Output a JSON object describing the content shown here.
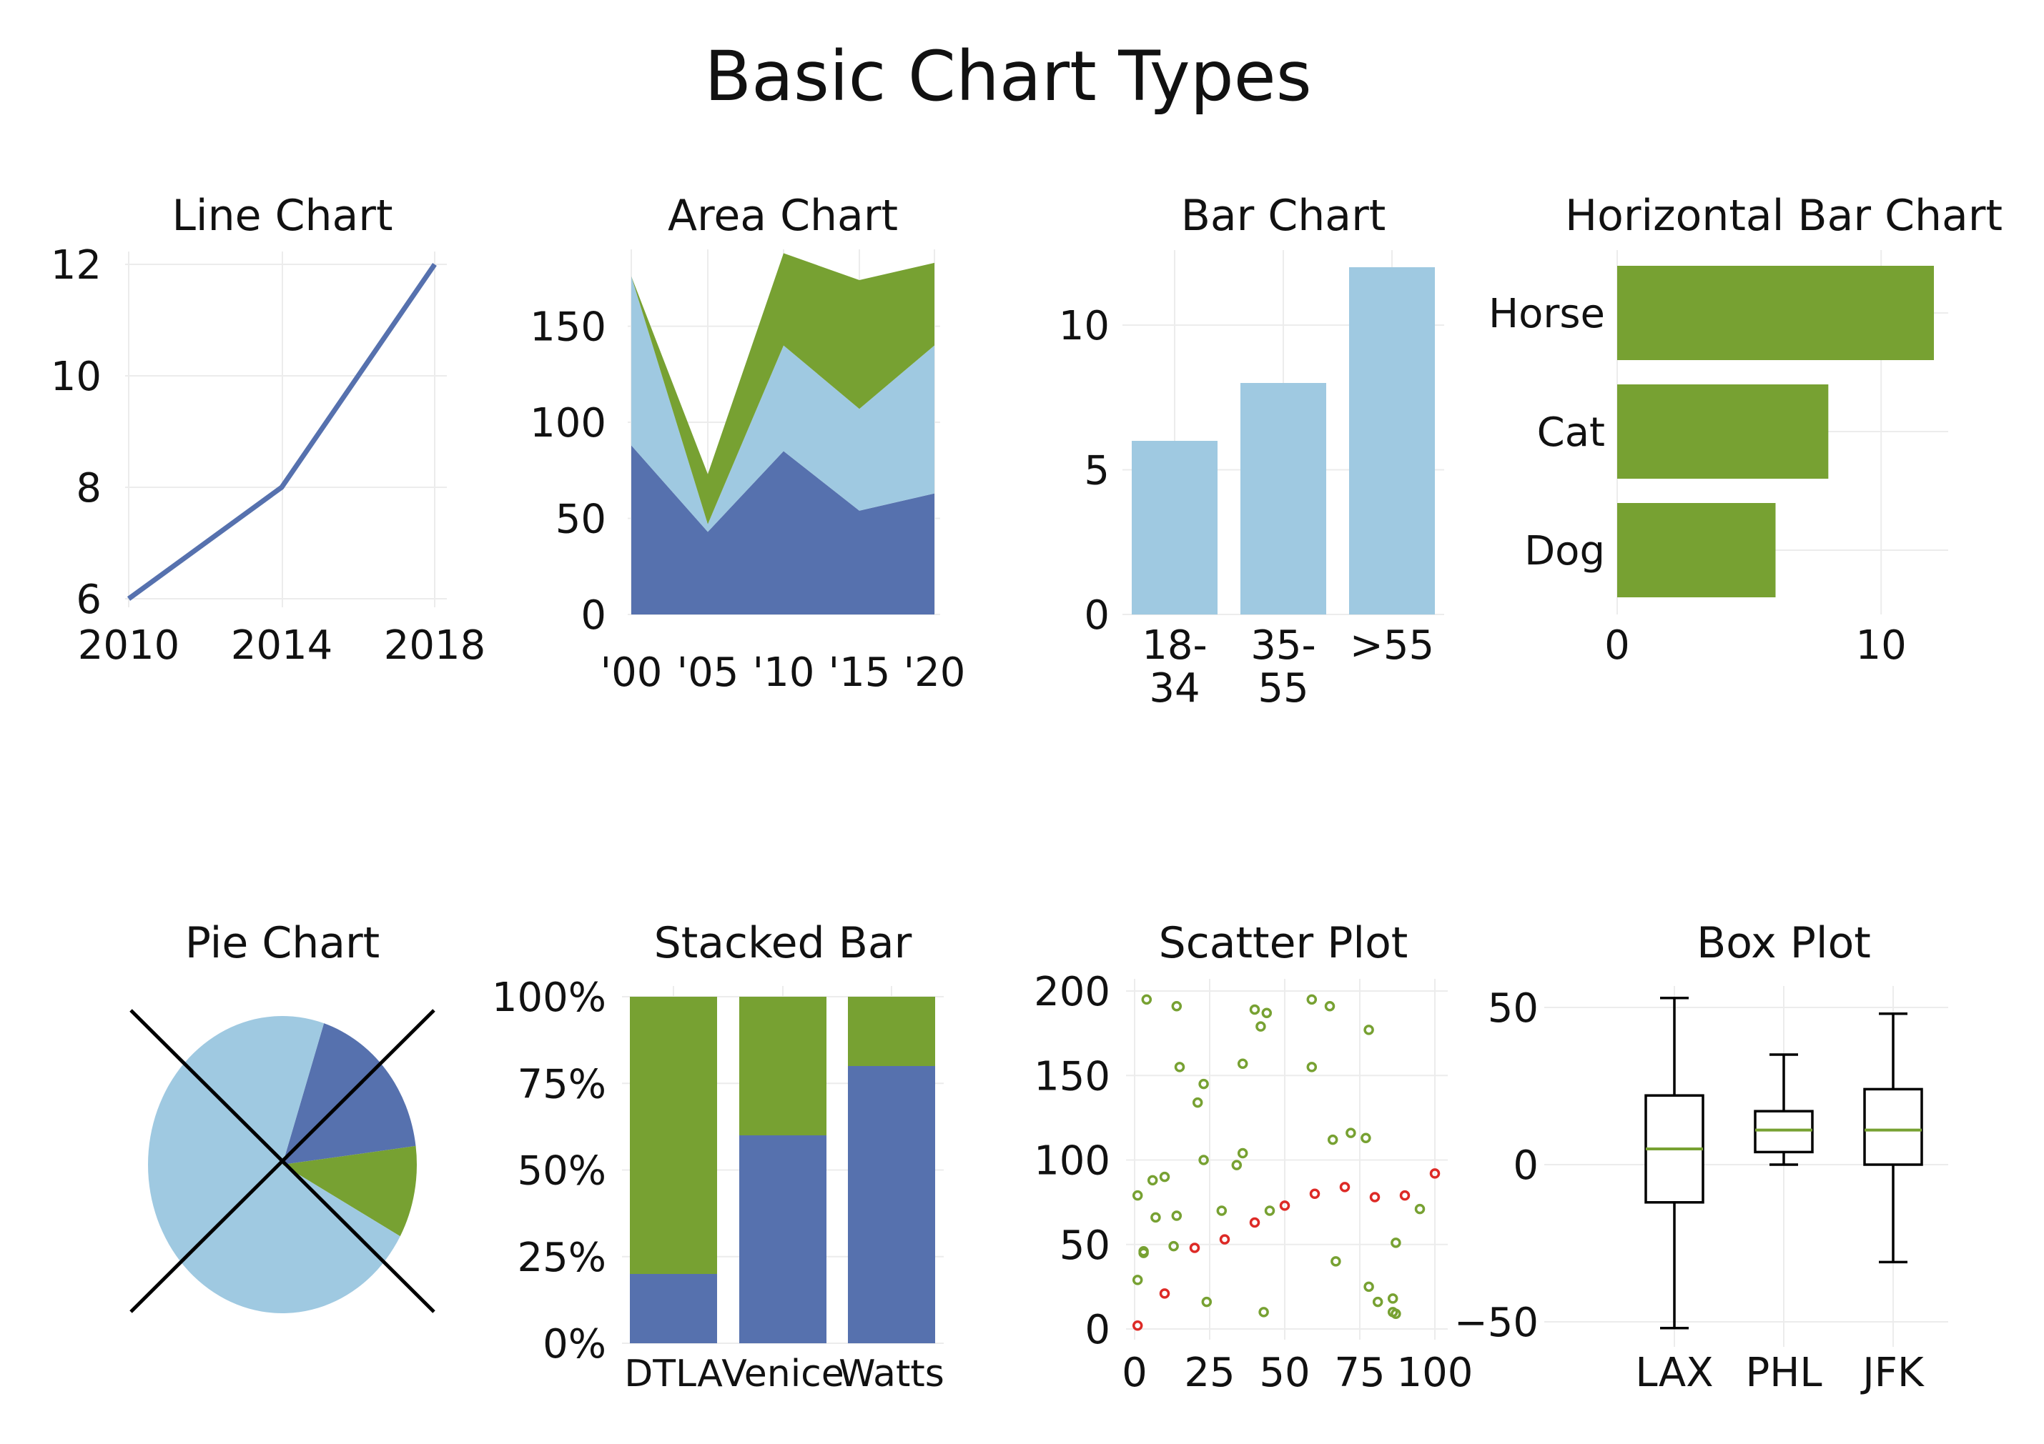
{
  "title": "Basic Chart Types",
  "colors": {
    "blue": "#5671ae",
    "light_blue": "#9fc9e1",
    "green": "#77a132",
    "red": "#dd2a26",
    "grid": "#ececec",
    "text": "#111111"
  },
  "chart_data": [
    {
      "type": "line",
      "title": "Line Chart",
      "x": [
        2010,
        2014,
        2018
      ],
      "y": [
        6,
        8,
        12
      ],
      "xticks": [
        "2010",
        "2014",
        "2018"
      ],
      "yticks": [
        "6",
        "8",
        "10",
        "12"
      ],
      "xlim": [
        2010,
        2018
      ],
      "ylim": [
        6,
        12
      ],
      "grid": true
    },
    {
      "type": "area",
      "title": "Area Chart",
      "stacked": true,
      "categories": [
        "'00",
        "'05",
        "'10",
        "'15",
        "'20"
      ],
      "series": [
        {
          "values": [
            88,
            43,
            85,
            54,
            63
          ]
        },
        {
          "values": [
            88,
            4,
            55,
            53,
            77
          ]
        },
        {
          "values": [
            0,
            26,
            48,
            67,
            43
          ]
        }
      ],
      "yticks": [
        "0",
        "50",
        "100",
        "150"
      ],
      "ylim": [
        0,
        190
      ],
      "grid": true
    },
    {
      "type": "bar",
      "title": "Bar Chart",
      "categories": [
        [
          "18-",
          "34"
        ],
        [
          "35-",
          "55"
        ],
        [
          ">55"
        ]
      ],
      "values": [
        6,
        8,
        12
      ],
      "yticks": [
        "0",
        "5",
        "10"
      ],
      "ylim": [
        0,
        12
      ],
      "grid": true
    },
    {
      "type": "bar",
      "orientation": "horizontal",
      "title": "Horizontal Bar Chart",
      "categories": [
        "Horse",
        "Cat",
        "Dog"
      ],
      "values": [
        12,
        8,
        6
      ],
      "xticks": [
        "0",
        "10"
      ],
      "xlim": [
        0,
        12
      ],
      "grid": true
    },
    {
      "type": "pie",
      "title": "Pie Chart",
      "crossed_out": true,
      "values": [
        18,
        10,
        72
      ]
    },
    {
      "type": "bar",
      "stacked": true,
      "title": "Stacked Bar",
      "categories": [
        "DTLA",
        "Venice",
        "Watts"
      ],
      "series": [
        {
          "values": [
            20,
            60,
            80
          ]
        },
        {
          "values": [
            80,
            40,
            20
          ]
        }
      ],
      "yticks": [
        "0%",
        "25%",
        "50%",
        "75%",
        "100%"
      ],
      "ylim": [
        0,
        100
      ],
      "grid": true
    },
    {
      "type": "scatter",
      "title": "Scatter Plot",
      "series": [
        {
          "color": "green",
          "points": [
            [
              1,
              29
            ],
            [
              1,
              79
            ],
            [
              3,
              45
            ],
            [
              3,
              46
            ],
            [
              4,
              195
            ],
            [
              6,
              88
            ],
            [
              7,
              66
            ],
            [
              10,
              90
            ],
            [
              13,
              49
            ],
            [
              14,
              67
            ],
            [
              14,
              191
            ],
            [
              15,
              155
            ],
            [
              21,
              134
            ],
            [
              23,
              100
            ],
            [
              23,
              145
            ],
            [
              24,
              16
            ],
            [
              29,
              70
            ],
            [
              34,
              97
            ],
            [
              36,
              104
            ],
            [
              36,
              157
            ],
            [
              40,
              189
            ],
            [
              42,
              179
            ],
            [
              43,
              10
            ],
            [
              44,
              187
            ],
            [
              45,
              70
            ],
            [
              59,
              195
            ],
            [
              59,
              155
            ],
            [
              65,
              191
            ],
            [
              66,
              112
            ],
            [
              67,
              40
            ],
            [
              72,
              116
            ],
            [
              77,
              113
            ],
            [
              78,
              25
            ],
            [
              78,
              177
            ],
            [
              81,
              16
            ],
            [
              86,
              18
            ],
            [
              86,
              10
            ],
            [
              87,
              9
            ],
            [
              87,
              51
            ],
            [
              95,
              71
            ]
          ]
        },
        {
          "color": "red",
          "points": [
            [
              1,
              2
            ],
            [
              10,
              21
            ],
            [
              20,
              48
            ],
            [
              30,
              53
            ],
            [
              40,
              63
            ],
            [
              50,
              73
            ],
            [
              60,
              80
            ],
            [
              70,
              84
            ],
            [
              80,
              78
            ],
            [
              90,
              79
            ],
            [
              100,
              92
            ]
          ]
        }
      ],
      "xticks": [
        "0",
        "25",
        "50",
        "75",
        "100"
      ],
      "yticks": [
        "0",
        "50",
        "100",
        "150",
        "200"
      ],
      "xlim": [
        0,
        100
      ],
      "ylim": [
        0,
        200
      ],
      "grid": true
    },
    {
      "type": "box",
      "title": "Box Plot",
      "categories": [
        "LAX",
        "PHL",
        "JFK"
      ],
      "boxes": [
        {
          "whisker_low": -52,
          "q1": -12,
          "median": 5,
          "q3": 22,
          "whisker_high": 53
        },
        {
          "whisker_low": 0,
          "q1": 4,
          "median": 11,
          "q3": 17,
          "whisker_high": 35
        },
        {
          "whisker_low": -31,
          "q1": 0,
          "median": 11,
          "q3": 24,
          "whisker_high": 48
        }
      ],
      "yticks": [
        "50",
        "0",
        "−50"
      ],
      "ylim": [
        -58,
        60
      ],
      "grid": true
    }
  ]
}
